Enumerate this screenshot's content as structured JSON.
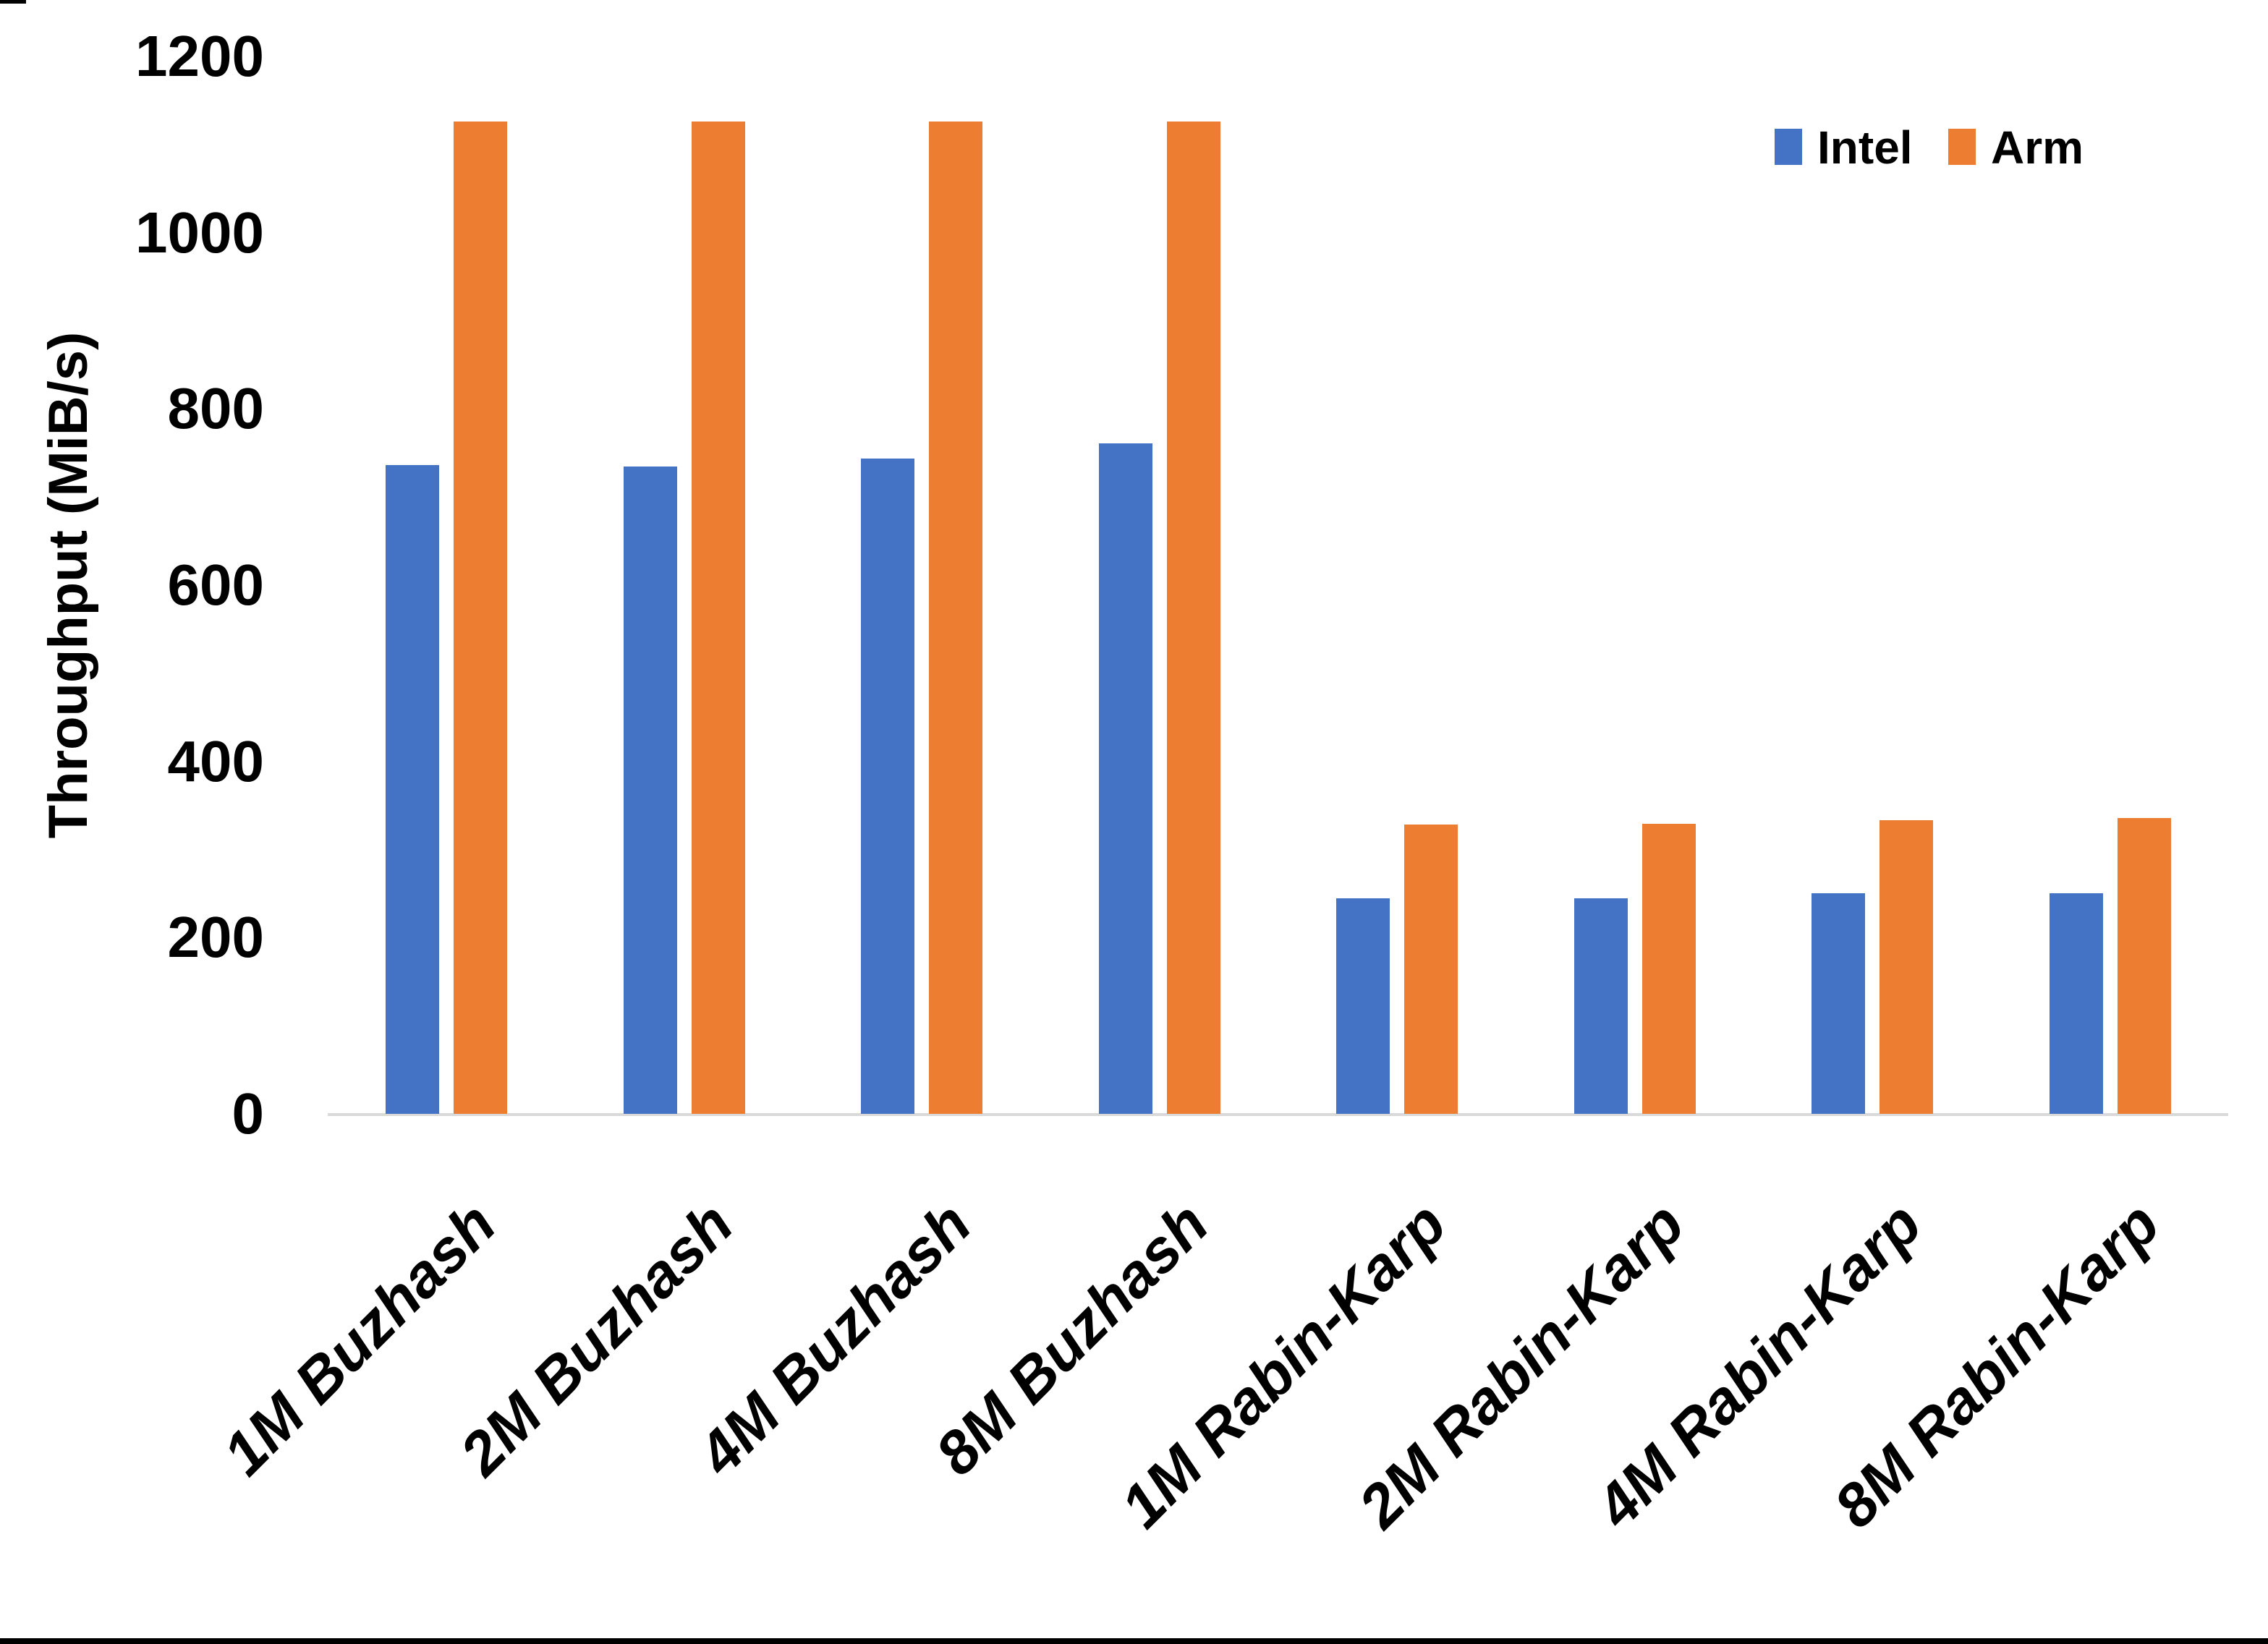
{
  "chart_data": {
    "type": "bar",
    "title": "",
    "xlabel": "",
    "ylabel": "Throughput (MiB/s)",
    "categories": [
      "1M Buzhash",
      "2M Buzhash",
      "4M Buzhash",
      "8M Buzhash",
      "1M Rabin-Karp",
      "2M Rabin-Karp",
      "4M Rabin-Karp",
      "8M Rabin-Karp"
    ],
    "series": [
      {
        "name": "Intel",
        "color": "#4472C4",
        "values": [
          736,
          735,
          744,
          761,
          245,
          245,
          250,
          250
        ]
      },
      {
        "name": "Arm",
        "color": "#ED7D31",
        "values": [
          1126,
          1126,
          1126,
          1126,
          328,
          329,
          333,
          336
        ]
      }
    ],
    "y_ticks": [
      0,
      200,
      400,
      600,
      800,
      1000,
      1200
    ],
    "ylim": [
      0,
      1200
    ],
    "grid": false,
    "legend_position": "top-right",
    "x_tick_rotation_deg": 45,
    "x_tick_style": "italic",
    "axis_line_color": "#d9d9d9",
    "background_color": "#ffffff"
  },
  "page": {
    "bottom_border_color": "#000000"
  }
}
